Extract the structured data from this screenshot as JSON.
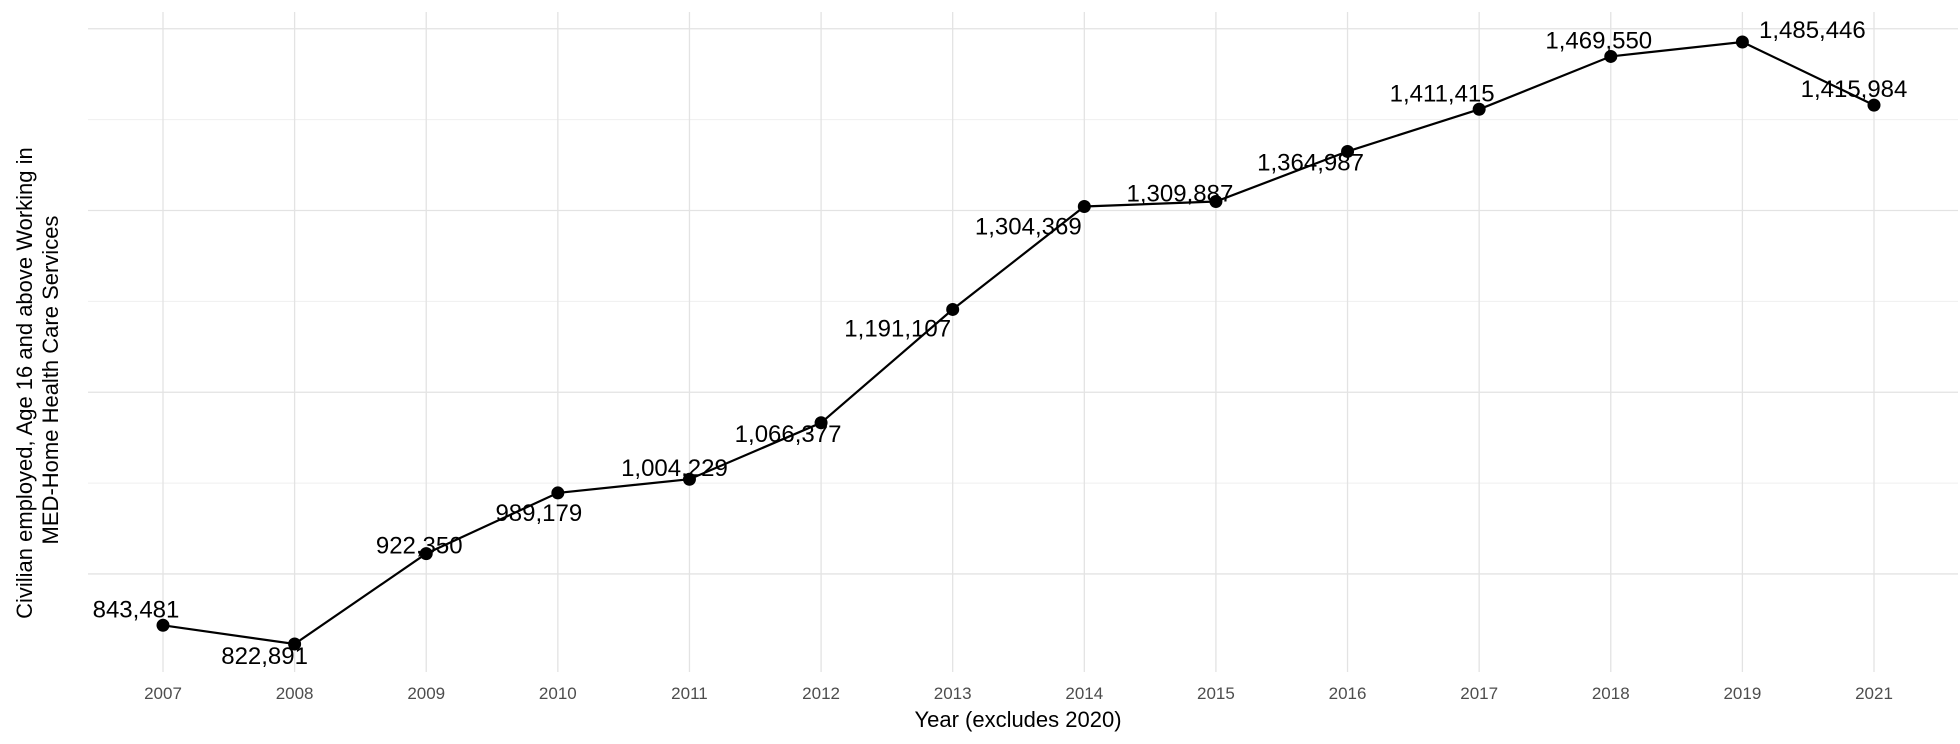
{
  "chart_data": {
    "type": "line",
    "title": "",
    "xlabel": "Year (excludes 2020)",
    "ylabel_lines": [
      "Civilian employed, Age 16 and above Working in",
      "MED-Home Health Care Services"
    ],
    "categories": [
      "2007",
      "2008",
      "2009",
      "2010",
      "2011",
      "2012",
      "2013",
      "2014",
      "2015",
      "2016",
      "2017",
      "2018",
      "2019",
      "2021"
    ],
    "values": [
      843481,
      822891,
      922350,
      989179,
      1004229,
      1066377,
      1191107,
      1304369,
      1309887,
      1364987,
      1411415,
      1469550,
      1485446,
      1415984
    ],
    "labels": [
      "843,481",
      "822,891",
      "922,350",
      "989,179",
      "1,004,229",
      "1,066,377",
      "1,191,107",
      "1,304,369",
      "1,309,887",
      "1,364,987",
      "1,411,415",
      "1,469,550",
      "1,485,446",
      "1,415,984"
    ],
    "ylim": [
      800000,
      1500000
    ],
    "y_gridlines": [
      900000,
      1100000,
      1300000,
      1500000
    ],
    "y_tick_labels_shown": false,
    "grid": true,
    "legend": "none",
    "line_color": "#000000",
    "point_color": "#000000"
  }
}
